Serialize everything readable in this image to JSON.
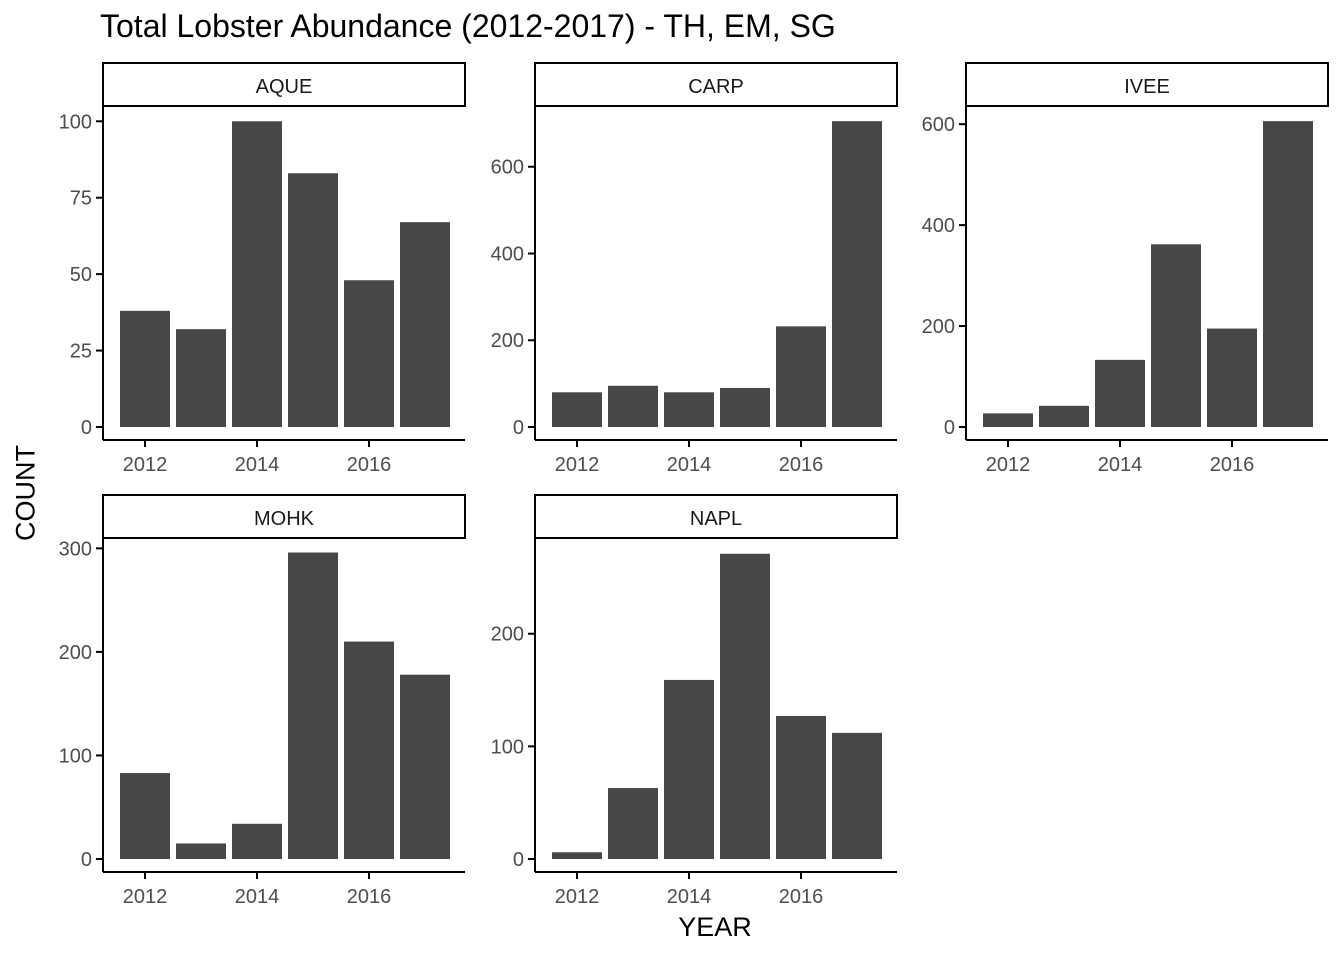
{
  "chart_data": {
    "type": "bar",
    "title": "Total Lobster Abundance (2012-2017) - TH, EM, SG",
    "xlabel": "YEAR",
    "ylabel": "COUNT",
    "grid": false,
    "x_ticks": [
      2012,
      2014,
      2016
    ],
    "x": [
      2012,
      2013,
      2014,
      2015,
      2016,
      2017
    ],
    "colors": {
      "bar": "#474747",
      "axis": "#000000",
      "tick_label": "#4d4d4d"
    },
    "facets": [
      {
        "name": "AQUE",
        "values": [
          38,
          32,
          100,
          83,
          48,
          67
        ],
        "ylim": [
          0,
          105
        ],
        "yticks": [
          0,
          25,
          50,
          75,
          100
        ]
      },
      {
        "name": "CARP",
        "values": [
          80,
          95,
          80,
          90,
          232,
          705
        ],
        "ylim": [
          0,
          740
        ],
        "yticks": [
          0,
          200,
          400,
          600
        ]
      },
      {
        "name": "IVEE",
        "values": [
          27,
          42,
          133,
          362,
          195,
          606
        ],
        "ylim": [
          0,
          636
        ],
        "yticks": [
          0,
          200,
          400,
          600
        ]
      },
      {
        "name": "MOHK",
        "values": [
          83,
          15,
          34,
          296,
          210,
          178
        ],
        "ylim": [
          0,
          310
        ],
        "yticks": [
          0,
          100,
          200,
          300
        ]
      },
      {
        "name": "NAPL",
        "values": [
          6,
          63,
          159,
          271,
          127,
          112
        ],
        "ylim": [
          0,
          285
        ],
        "yticks": [
          0,
          100,
          200
        ]
      }
    ]
  }
}
